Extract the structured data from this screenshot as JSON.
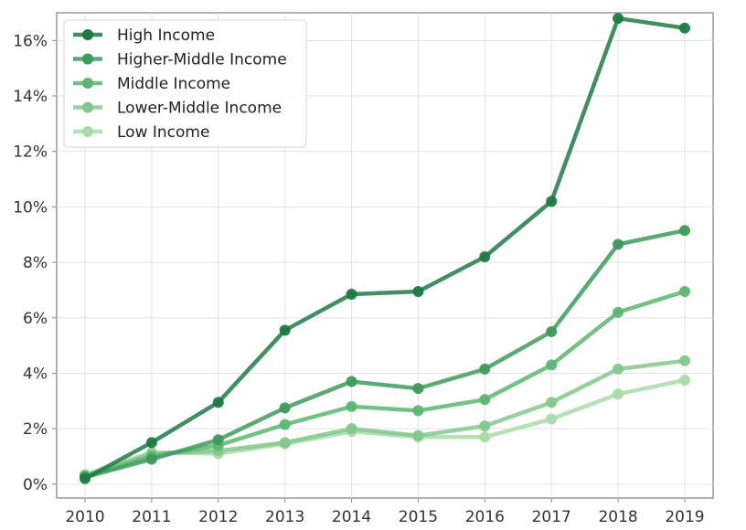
{
  "chart_data": {
    "type": "line",
    "title": "",
    "xlabel": "",
    "ylabel": "",
    "x": [
      "2010",
      "2011",
      "2012",
      "2013",
      "2014",
      "2015",
      "2016",
      "2017",
      "2018",
      "2019"
    ],
    "ylim": [
      -0.5,
      17.0
    ],
    "yticks": [
      0,
      2,
      4,
      6,
      8,
      10,
      12,
      14,
      16
    ],
    "ytick_labels": [
      "0%",
      "2%",
      "4%",
      "6%",
      "8%",
      "10%",
      "12%",
      "14%",
      "16%"
    ],
    "grid": true,
    "legend_position": "top-left",
    "series": [
      {
        "name": "High Income",
        "color": "#1e7a45",
        "values": [
          0.2,
          1.5,
          2.95,
          5.55,
          6.85,
          6.95,
          8.2,
          10.2,
          16.8,
          16.45
        ]
      },
      {
        "name": "Higher-Middle Income",
        "color": "#3e9a5c",
        "values": [
          0.25,
          0.9,
          1.6,
          2.75,
          3.7,
          3.45,
          4.15,
          5.5,
          8.65,
          9.15
        ]
      },
      {
        "name": "Middle Income",
        "color": "#5cb673",
        "values": [
          0.3,
          1.0,
          1.4,
          2.15,
          2.8,
          2.65,
          3.05,
          4.3,
          6.2,
          6.95
        ]
      },
      {
        "name": "Lower-Middle Income",
        "color": "#82c88d",
        "values": [
          0.3,
          1.1,
          1.2,
          1.5,
          2.0,
          1.75,
          2.1,
          2.95,
          4.15,
          4.45
        ]
      },
      {
        "name": "Low Income",
        "color": "#a9dba8",
        "values": [
          0.35,
          1.15,
          1.1,
          1.45,
          1.9,
          1.7,
          1.7,
          2.35,
          3.25,
          3.75
        ]
      }
    ]
  }
}
